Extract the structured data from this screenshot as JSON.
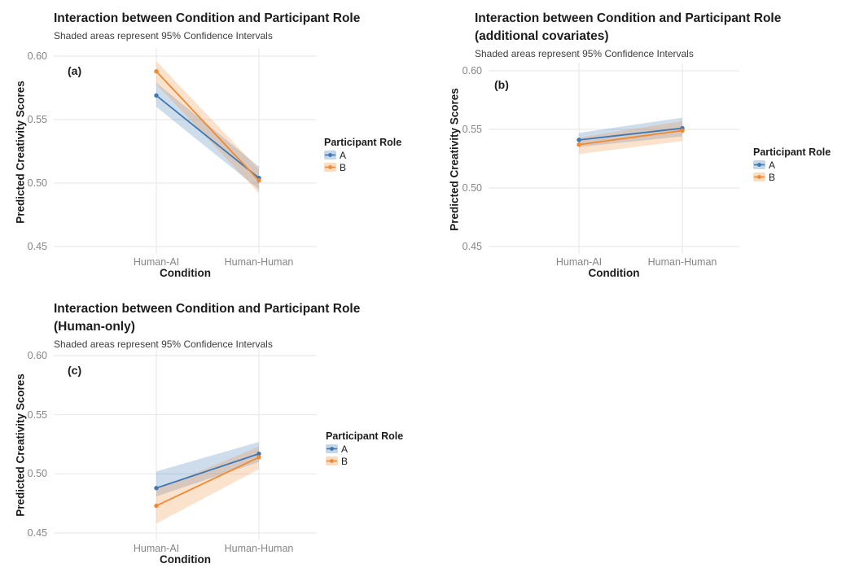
{
  "figure_name": "Interaction plots: Condition x Participant Role",
  "chart_data": [
    {
      "type": "line",
      "tag": "(a)",
      "title": "Interaction between Condition and Participant Role",
      "title_line2": "",
      "subtitle": "Shaded areas represent 95% Confidence Intervals",
      "xlabel": "Condition",
      "ylabel": "Predicted Creativity Scores",
      "categories": [
        "Human-AI",
        "Human-Human"
      ],
      "yticks": [
        0.45,
        0.5,
        0.55,
        0.6
      ],
      "ylim": [
        0.44,
        0.61
      ],
      "grid": "major-only",
      "legend_title": "Participant Role",
      "legend_position": "right",
      "series": [
        {
          "name": "A",
          "color": "#3d78b3",
          "values": [
            0.569,
            0.504
          ],
          "ci_lower": [
            0.56,
            0.495
          ],
          "ci_upper": [
            0.579,
            0.513
          ]
        },
        {
          "name": "B",
          "color": "#ef8a33",
          "values": [
            0.588,
            0.502
          ],
          "ci_lower": [
            0.578,
            0.492
          ],
          "ci_upper": [
            0.596,
            0.511
          ]
        }
      ]
    },
    {
      "type": "line",
      "tag": "(b)",
      "title": "Interaction between Condition and Participant Role",
      "title_line2": "(additional covariates)",
      "subtitle": "Shaded areas represent 95% Confidence Intervals",
      "xlabel": "Condition",
      "ylabel": "Predicted Creativity Scores",
      "categories": [
        "Human-AI",
        "Human-Human"
      ],
      "yticks": [
        0.45,
        0.5,
        0.55,
        0.6
      ],
      "ylim": [
        0.44,
        0.61
      ],
      "grid": "major-only",
      "legend_title": "Participant Role",
      "legend_position": "right",
      "series": [
        {
          "name": "A",
          "color": "#3d78b3",
          "values": [
            0.541,
            0.551
          ],
          "ci_lower": [
            0.535,
            0.544
          ],
          "ci_upper": [
            0.547,
            0.56
          ]
        },
        {
          "name": "B",
          "color": "#ef8a33",
          "values": [
            0.537,
            0.549
          ],
          "ci_lower": [
            0.529,
            0.54
          ],
          "ci_upper": [
            0.543,
            0.557
          ]
        }
      ]
    },
    {
      "type": "line",
      "tag": "(c)",
      "title": "Interaction between Condition and Participant Role",
      "title_line2": "(Human-only)",
      "subtitle": "Shaded areas represent 95% Confidence Intervals",
      "xlabel": "Condition",
      "ylabel": "Predicted Creativity Scores",
      "categories": [
        "Human-AI",
        "Human-Human"
      ],
      "yticks": [
        0.45,
        0.5,
        0.55,
        0.6
      ],
      "ylim": [
        0.44,
        0.61
      ],
      "grid": "major-only",
      "legend_title": "Participant Role",
      "legend_position": "right",
      "series": [
        {
          "name": "A",
          "color": "#3d78b3",
          "values": [
            0.488,
            0.517
          ],
          "ci_lower": [
            0.481,
            0.51
          ],
          "ci_upper": [
            0.502,
            0.527
          ]
        },
        {
          "name": "B",
          "color": "#ef8a33",
          "values": [
            0.473,
            0.514
          ],
          "ci_lower": [
            0.458,
            0.504
          ],
          "ci_upper": [
            0.487,
            0.523
          ]
        }
      ]
    }
  ],
  "style": {
    "series_colors": {
      "A": "#3d78b3",
      "B": "#ef8a33"
    },
    "ribbon_opacity": 0.25,
    "gridline_color": "#e9e9e9",
    "tick_label_color": "#858585",
    "text_color": "#1c1c1c"
  }
}
